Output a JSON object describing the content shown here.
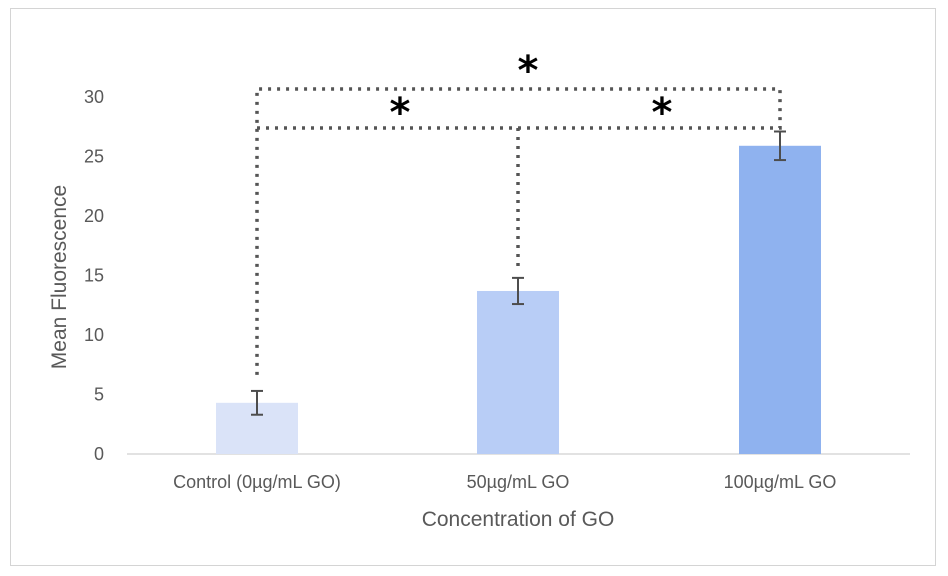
{
  "chart_data": {
    "type": "bar",
    "title": "",
    "xlabel": "Concentration of GO",
    "ylabel": "Mean Fluorescence",
    "categories": [
      "Control (0µg/mL GO)",
      "50µg/mL GO",
      "100µg/mL GO"
    ],
    "values": [
      4.3,
      13.7,
      25.9
    ],
    "errors": [
      1.0,
      1.1,
      1.2
    ],
    "ylim": [
      0,
      30
    ],
    "yticks": [
      "0",
      "5",
      "10",
      "15",
      "20",
      "25",
      "30"
    ],
    "grid": false,
    "legend": "none",
    "colors": [
      "#dae3f8",
      "#b8cdf6",
      "#8fb2ef"
    ],
    "significance": [
      {
        "from": 0,
        "to": 2,
        "label": "*"
      },
      {
        "from": 0,
        "to": 1,
        "label": "*"
      },
      {
        "from": 1,
        "to": 2,
        "label": "*"
      }
    ]
  }
}
